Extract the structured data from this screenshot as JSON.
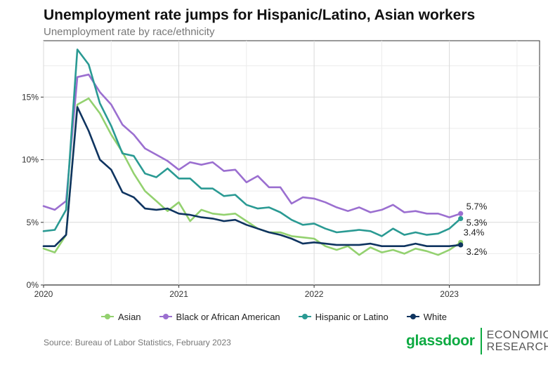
{
  "header": {
    "title": "Unemployment rate jumps for Hispanic/Latino, Asian workers",
    "subtitle": "Unemployment rate by race/ethnicity"
  },
  "footer": {
    "source": "Source: Bureau of Labor Statistics, February 2023",
    "logo_word": "glassdoor",
    "logo_line1": "ECONOMIC",
    "logo_line2": "RESEARCH"
  },
  "colors": {
    "asian": "#93d16f",
    "black": "#9b6fd0",
    "hispanic": "#2a9a93",
    "white": "#0f3460",
    "brand": "#0caa41"
  },
  "chart_data": {
    "type": "line",
    "title": "Unemployment rate jumps for Hispanic/Latino, Asian workers",
    "subtitle": "Unemployment rate by race/ethnicity",
    "x_start": "2020-01",
    "x_frequency": "monthly",
    "xlim": [
      "2020-01",
      "2023-09"
    ],
    "ylim": [
      0,
      19.5
    ],
    "x_ticks": [
      "2020",
      "2021",
      "2022",
      "2023"
    ],
    "y_ticks": [
      {
        "value": 0,
        "label": "0%"
      },
      {
        "value": 5,
        "label": "5%"
      },
      {
        "value": 10,
        "label": "10%"
      },
      {
        "value": 15,
        "label": "15%"
      }
    ],
    "grid": true,
    "legend_position": "bottom",
    "series": [
      {
        "key": "asian",
        "name": "Asian",
        "end_label": "3.4%",
        "values": [
          2.9,
          2.6,
          4.0,
          14.4,
          14.9,
          13.7,
          12.0,
          10.6,
          8.9,
          7.5,
          6.7,
          5.9,
          6.6,
          5.1,
          6.0,
          5.7,
          5.6,
          5.7,
          5.1,
          4.5,
          4.2,
          4.2,
          3.9,
          3.8,
          3.7,
          3.1,
          2.8,
          3.1,
          2.4,
          3.0,
          2.6,
          2.8,
          2.5,
          2.9,
          2.7,
          2.4,
          2.8,
          3.4
        ]
      },
      {
        "key": "black",
        "name": "Black or African American",
        "end_label": "5.7%",
        "values": [
          6.3,
          6.0,
          6.7,
          16.6,
          16.8,
          15.4,
          14.4,
          12.8,
          12.0,
          10.9,
          10.4,
          9.9,
          9.2,
          9.8,
          9.6,
          9.8,
          9.1,
          9.2,
          8.2,
          8.7,
          7.8,
          7.8,
          6.5,
          7.0,
          6.9,
          6.6,
          6.2,
          5.9,
          6.2,
          5.8,
          6.0,
          6.4,
          5.8,
          5.9,
          5.7,
          5.7,
          5.4,
          5.7
        ]
      },
      {
        "key": "hispanic",
        "name": "Hispanic or Latino",
        "end_label": "5.3%",
        "values": [
          4.3,
          4.4,
          6.0,
          18.8,
          17.6,
          14.5,
          12.7,
          10.5,
          10.3,
          8.9,
          8.6,
          9.3,
          8.5,
          8.5,
          7.7,
          7.7,
          7.1,
          7.2,
          6.4,
          6.1,
          6.2,
          5.8,
          5.2,
          4.8,
          4.9,
          4.5,
          4.2,
          4.3,
          4.4,
          4.3,
          3.9,
          4.5,
          4.0,
          4.2,
          4.0,
          4.1,
          4.5,
          5.3
        ]
      },
      {
        "key": "white",
        "name": "White",
        "end_label": "3.2%",
        "values": [
          3.1,
          3.1,
          4.0,
          14.2,
          12.3,
          10.0,
          9.2,
          7.4,
          7.0,
          6.1,
          6.0,
          6.1,
          5.7,
          5.6,
          5.4,
          5.3,
          5.1,
          5.2,
          4.8,
          4.5,
          4.2,
          4.0,
          3.7,
          3.3,
          3.4,
          3.3,
          3.2,
          3.2,
          3.2,
          3.3,
          3.1,
          3.1,
          3.1,
          3.3,
          3.1,
          3.1,
          3.1,
          3.2
        ]
      }
    ]
  }
}
